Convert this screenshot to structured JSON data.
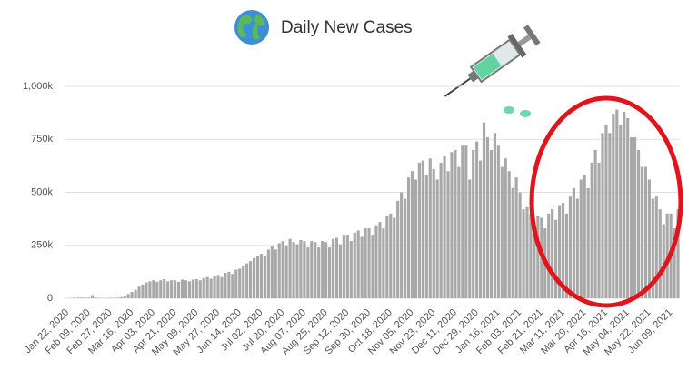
{
  "chart_data": {
    "type": "bar",
    "title": "Daily New Cases",
    "categories": [
      "Jan 22, 2020",
      null,
      null,
      null,
      null,
      null,
      "Feb 09, 2020",
      null,
      null,
      null,
      null,
      null,
      "Feb 27, 2020",
      null,
      null,
      null,
      null,
      null,
      "Mar 16, 2020",
      null,
      null,
      null,
      null,
      null,
      "Apr 03, 2020",
      null,
      null,
      null,
      null,
      null,
      "Apr 21, 2020",
      null,
      null,
      null,
      null,
      null,
      "May 09, 2020",
      null,
      null,
      null,
      null,
      null,
      "May 27, 2020",
      null,
      null,
      null,
      null,
      null,
      "Jun 14, 2020",
      null,
      null,
      null,
      null,
      null,
      "Jul 02, 2020",
      null,
      null,
      null,
      null,
      null,
      "Jul 20, 2020",
      null,
      null,
      null,
      null,
      null,
      "Aug 07, 2020",
      null,
      null,
      null,
      null,
      null,
      "Aug 25, 2020",
      null,
      null,
      null,
      null,
      null,
      "Sep 12, 2020",
      null,
      null,
      null,
      null,
      null,
      "Sep 30, 2020",
      null,
      null,
      null,
      null,
      null,
      "Oct 18, 2020",
      null,
      null,
      null,
      null,
      null,
      "Nov 05, 2020",
      null,
      null,
      null,
      null,
      null,
      "Nov 23, 2020",
      null,
      null,
      null,
      null,
      null,
      "Dec 11, 2020",
      null,
      null,
      null,
      null,
      null,
      "Dec 29, 2020",
      null,
      null,
      null,
      null,
      null,
      "Jan 16, 2021",
      null,
      null,
      null,
      null,
      null,
      "Feb 03, 2021",
      null,
      null,
      null,
      null,
      null,
      "Feb 21, 2021",
      null,
      null,
      null,
      null,
      null,
      "Mar 11, 2021",
      null,
      null,
      null,
      null,
      null,
      "Mar 29, 2021",
      null,
      null,
      null,
      null,
      null,
      "Apr 16, 2021",
      null,
      null,
      null,
      null,
      null,
      "May 04, 2021",
      null,
      null,
      null,
      null,
      null,
      "May 22, 2021",
      null,
      null,
      null,
      null,
      null,
      "Jun 09, 2021",
      null,
      null
    ],
    "values": [
      0,
      1000,
      2000,
      3000,
      3000,
      3000,
      3000,
      15000,
      3000,
      2000,
      1000,
      1000,
      2000,
      2000,
      3000,
      5000,
      10000,
      20000,
      30000,
      40000,
      55000,
      65000,
      75000,
      80000,
      85000,
      78000,
      85000,
      90000,
      80000,
      85000,
      85000,
      78000,
      88000,
      85000,
      80000,
      88000,
      90000,
      85000,
      95000,
      100000,
      92000,
      105000,
      110000,
      100000,
      120000,
      125000,
      115000,
      135000,
      140000,
      150000,
      165000,
      175000,
      190000,
      200000,
      210000,
      200000,
      230000,
      245000,
      230000,
      260000,
      270000,
      250000,
      280000,
      265000,
      255000,
      275000,
      270000,
      240000,
      270000,
      265000,
      240000,
      270000,
      265000,
      240000,
      280000,
      285000,
      255000,
      300000,
      300000,
      270000,
      310000,
      320000,
      290000,
      330000,
      330000,
      300000,
      345000,
      360000,
      330000,
      390000,
      400000,
      380000,
      460000,
      500000,
      470000,
      570000,
      600000,
      560000,
      640000,
      650000,
      580000,
      660000,
      610000,
      560000,
      640000,
      670000,
      600000,
      690000,
      700000,
      620000,
      720000,
      720000,
      560000,
      700000,
      740000,
      650000,
      830000,
      760000,
      700000,
      780000,
      720000,
      620000,
      660000,
      600000,
      520000,
      570000,
      500000,
      420000,
      430000,
      400000,
      330000,
      390000,
      380000,
      330000,
      400000,
      420000,
      370000,
      440000,
      450000,
      400000,
      480000,
      520000,
      470000,
      560000,
      580000,
      520000,
      640000,
      700000,
      640000,
      780000,
      820000,
      780000,
      870000,
      890000,
      820000,
      880000,
      850000,
      760000,
      760000,
      700000,
      620000,
      620000,
      560000,
      470000,
      480000,
      420000,
      350000,
      400000,
      400000,
      330000,
      420000
    ],
    "color": "#a8a8a8",
    "ylim": [
      0,
      1000000
    ],
    "yticks": [
      0,
      {
        "value": 250000,
        "label": "250k"
      },
      {
        "value": 500000,
        "label": "500k"
      },
      {
        "value": 750000,
        "label": "750k"
      },
      {
        "value": 1000000,
        "label": "1,000k"
      }
    ],
    "grid": true
  }
}
